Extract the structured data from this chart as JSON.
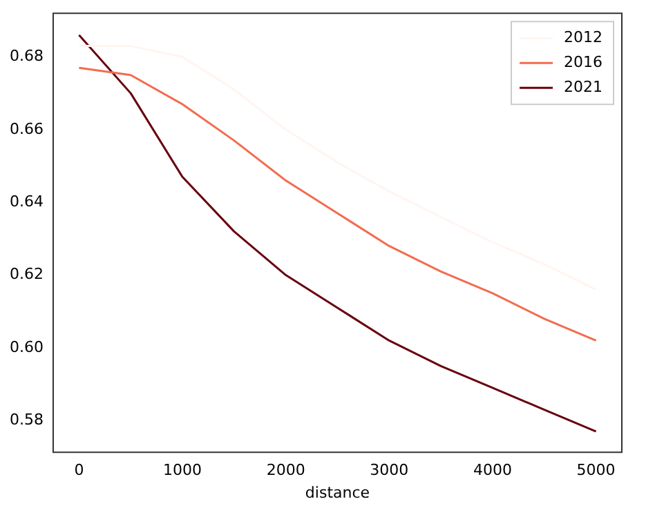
{
  "chart_data": {
    "type": "line",
    "xlabel": "distance",
    "x": [
      0,
      500,
      1000,
      1500,
      2000,
      2500,
      3000,
      3500,
      4000,
      4500,
      5000
    ],
    "series": [
      {
        "name": "2012",
        "color": "#fff5f0",
        "values": [
          0.683,
          0.683,
          0.68,
          0.671,
          0.66,
          0.651,
          0.643,
          0.636,
          0.629,
          0.623,
          0.616
        ]
      },
      {
        "name": "2016",
        "color": "#f26c4f",
        "values": [
          0.677,
          0.675,
          0.667,
          0.657,
          0.646,
          0.637,
          0.628,
          0.621,
          0.615,
          0.608,
          0.602
        ]
      },
      {
        "name": "2021",
        "color": "#67000d",
        "values": [
          0.686,
          0.67,
          0.647,
          0.632,
          0.62,
          0.611,
          0.602,
          0.595,
          0.589,
          0.583,
          0.577
        ]
      }
    ],
    "xlim": [
      -250,
      5250
    ],
    "ylim": [
      0.5713,
      0.692
    ],
    "xticks": [
      0,
      1000,
      2000,
      3000,
      4000,
      5000
    ],
    "yticks": [
      0.58,
      {
        "value": 0.6,
        "label": "0.60"
      },
      0.62,
      0.64,
      0.66,
      0.68
    ],
    "legend": "top right",
    "grid": false,
    "marker": "none",
    "line_style": "solid"
  }
}
